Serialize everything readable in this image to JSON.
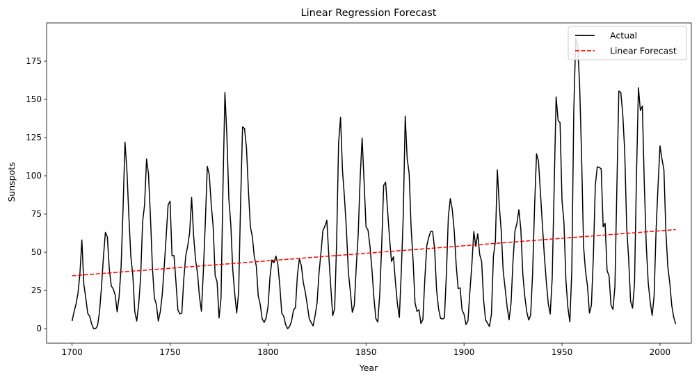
{
  "chart_data": {
    "type": "line",
    "title": "Linear Regression Forecast",
    "xlabel": "Year",
    "ylabel": "Sunspots",
    "xlim": [
      1687,
      2016
    ],
    "ylim": [
      -9.5,
      200
    ],
    "x_ticks": [
      1700,
      1750,
      1800,
      1850,
      1900,
      1950,
      2000
    ],
    "y_ticks": [
      0,
      25,
      50,
      75,
      100,
      125,
      150,
      175
    ],
    "grid": false,
    "legend_position": "top-right",
    "series": [
      {
        "name": "Actual",
        "style": "solid",
        "color": "#000000",
        "x": [
          1700,
          1701,
          1702,
          1703,
          1704,
          1705,
          1706,
          1707,
          1708,
          1709,
          1710,
          1711,
          1712,
          1713,
          1714,
          1715,
          1716,
          1717,
          1718,
          1719,
          1720,
          1721,
          1722,
          1723,
          1724,
          1725,
          1726,
          1727,
          1728,
          1729,
          1730,
          1731,
          1732,
          1733,
          1734,
          1735,
          1736,
          1737,
          1738,
          1739,
          1740,
          1741,
          1742,
          1743,
          1744,
          1745,
          1746,
          1747,
          1748,
          1749,
          1750,
          1751,
          1752,
          1753,
          1754,
          1755,
          1756,
          1757,
          1758,
          1759,
          1760,
          1761,
          1762,
          1763,
          1764,
          1765,
          1766,
          1767,
          1768,
          1769,
          1770,
          1771,
          1772,
          1773,
          1774,
          1775,
          1776,
          1777,
          1778,
          1779,
          1780,
          1781,
          1782,
          1783,
          1784,
          1785,
          1786,
          1787,
          1788,
          1789,
          1790,
          1791,
          1792,
          1793,
          1794,
          1795,
          1796,
          1797,
          1798,
          1799,
          1800,
          1801,
          1802,
          1803,
          1804,
          1805,
          1806,
          1807,
          1808,
          1809,
          1810,
          1811,
          1812,
          1813,
          1814,
          1815,
          1816,
          1817,
          1818,
          1819,
          1820,
          1821,
          1822,
          1823,
          1824,
          1825,
          1826,
          1827,
          1828,
          1829,
          1830,
          1831,
          1832,
          1833,
          1834,
          1835,
          1836,
          1837,
          1838,
          1839,
          1840,
          1841,
          1842,
          1843,
          1844,
          1845,
          1846,
          1847,
          1848,
          1849,
          1850,
          1851,
          1852,
          1853,
          1854,
          1855,
          1856,
          1857,
          1858,
          1859,
          1860,
          1861,
          1862,
          1863,
          1864,
          1865,
          1866,
          1867,
          1868,
          1869,
          1870,
          1871,
          1872,
          1873,
          1874,
          1875,
          1876,
          1877,
          1878,
          1879,
          1880,
          1881,
          1882,
          1883,
          1884,
          1885,
          1886,
          1887,
          1888,
          1889,
          1890,
          1891,
          1892,
          1893,
          1894,
          1895,
          1896,
          1897,
          1898,
          1899,
          1900,
          1901,
          1902,
          1903,
          1904,
          1905,
          1906,
          1907,
          1908,
          1909,
          1910,
          1911,
          1912,
          1913,
          1914,
          1915,
          1916,
          1917,
          1918,
          1919,
          1920,
          1921,
          1922,
          1923,
          1924,
          1925,
          1926,
          1927,
          1928,
          1929,
          1930,
          1931,
          1932,
          1933,
          1934,
          1935,
          1936,
          1937,
          1938,
          1939,
          1940,
          1941,
          1942,
          1943,
          1944,
          1945,
          1946,
          1947,
          1948,
          1949,
          1950,
          1951,
          1952,
          1953,
          1954,
          1955,
          1956,
          1957,
          1958,
          1959,
          1960,
          1961,
          1962,
          1963,
          1964,
          1965,
          1966,
          1967,
          1968,
          1969,
          1970,
          1971,
          1972,
          1973,
          1974,
          1975,
          1976,
          1977,
          1978,
          1979,
          1980,
          1981,
          1982,
          1983,
          1984,
          1985,
          1986,
          1987,
          1988,
          1989,
          1990,
          1991,
          1992,
          1993,
          1994,
          1995,
          1996,
          1997,
          1998,
          1999,
          2000,
          2001,
          2002,
          2003,
          2004,
          2005,
          2006,
          2007,
          2008
        ],
        "y": [
          5,
          11,
          16,
          23,
          36,
          58,
          29,
          20,
          10,
          8,
          3,
          0,
          0,
          2,
          11,
          27,
          47,
          63,
          60,
          39,
          28,
          26,
          22,
          11,
          21,
          40,
          78,
          122,
          103,
          73,
          47,
          35,
          11,
          5,
          16,
          34,
          70,
          81,
          111,
          101,
          73,
          40,
          20,
          16,
          5,
          11,
          22,
          40,
          60,
          80.9,
          83.4,
          47.7,
          47.8,
          30.7,
          12.2,
          9.6,
          10.2,
          32.4,
          47.6,
          54,
          62.9,
          85.9,
          61.2,
          45.1,
          36.4,
          20.9,
          11.4,
          37.8,
          69.8,
          106.1,
          100.8,
          81.6,
          66.5,
          34.8,
          30.6,
          7,
          19.8,
          92.5,
          154.4,
          125.9,
          84.8,
          68.1,
          38.5,
          22.8,
          10.2,
          24.1,
          82.9,
          132,
          130.9,
          118.1,
          89.9,
          66.6,
          60,
          46.9,
          41,
          21.3,
          16,
          6.4,
          4.1,
          6.8,
          14.5,
          34,
          45,
          43.1,
          47.5,
          42.2,
          28.1,
          10.1,
          8.1,
          2.5,
          0,
          1.4,
          5,
          12.2,
          13.9,
          35.4,
          45.8,
          41.1,
          30.1,
          23.9,
          15.6,
          6.6,
          4,
          1.8,
          8.5,
          16.6,
          36.3,
          49.6,
          64.2,
          67,
          70.9,
          47.8,
          27.5,
          8.5,
          13.2,
          56.9,
          121.5,
          138.3,
          103.2,
          85.7,
          64.6,
          36.7,
          24.2,
          10.7,
          15,
          40.1,
          61.5,
          98.5,
          124.7,
          96.3,
          66.6,
          64.5,
          54.1,
          39,
          20.6,
          6.7,
          4.3,
          22.7,
          54.8,
          93.8,
          95.8,
          77.2,
          59.1,
          44,
          47,
          30.5,
          16.3,
          7.3,
          37.6,
          74,
          139,
          111.2,
          101.6,
          66.2,
          44.7,
          17,
          11.3,
          12.4,
          3.4,
          6,
          32.3,
          54.3,
          59.7,
          63.7,
          63.5,
          52.2,
          25.4,
          13.1,
          6.8,
          6.3,
          7.1,
          35.6,
          73,
          85.1,
          78,
          64,
          41.8,
          26.2,
          26.7,
          12.1,
          9.5,
          2.7,
          5,
          24.4,
          42,
          63.5,
          53.8,
          62,
          48.5,
          43.9,
          18.6,
          5.7,
          3.6,
          1.4,
          9.6,
          47.4,
          57.1,
          103.9,
          80.6,
          63.6,
          37.6,
          26.1,
          14.2,
          5.8,
          16.7,
          44.3,
          63.9,
          69,
          77.8,
          64.9,
          35.7,
          21.2,
          11.1,
          5.7,
          8.7,
          36.1,
          79.7,
          114.4,
          109.6,
          88.8,
          67.8,
          47.5,
          30.6,
          16.3,
          9.6,
          33.2,
          92.6,
          151.6,
          136.3,
          134.7,
          83.9,
          69.4,
          31.5,
          13.9,
          4.4,
          38,
          141.7,
          190.2,
          184.8,
          159,
          112.3,
          53.9,
          37.6,
          27.9,
          10.2,
          15.1,
          47,
          93.8,
          105.9,
          105.5,
          104.5,
          66.6,
          68.9,
          38,
          34.5,
          15.5,
          12.6,
          27.5,
          92.5,
          155.4,
          154.6,
          140.4,
          115.9,
          66.6,
          45.9,
          17.9,
          13.4,
          29.4,
          100.2,
          157.6,
          142.6,
          145.7,
          94.3,
          54.6,
          29.9,
          17.5,
          8.6,
          21.5,
          64.3,
          93.3,
          119.6,
          111,
          104,
          63.7,
          40.4,
          29.8,
          15.2,
          7.5,
          2.9
        ]
      },
      {
        "name": "Linear Forecast",
        "style": "dashed",
        "color": "#ff0000",
        "x": [
          1700,
          2008
        ],
        "y": [
          34.6,
          64.8
        ]
      }
    ]
  }
}
